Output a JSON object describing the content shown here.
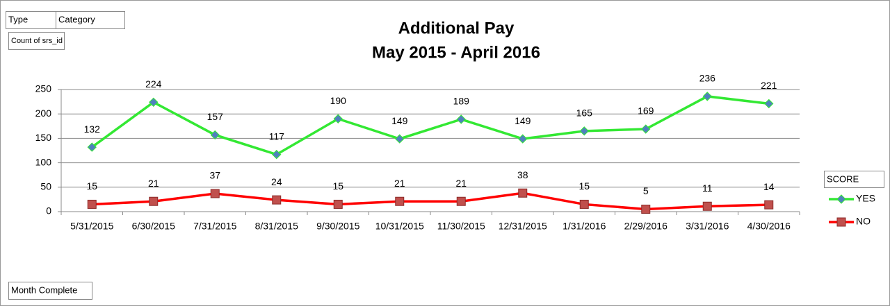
{
  "chart_data": {
    "type": "line",
    "title": [
      "Additional Pay",
      "May 2015 - April 2016"
    ],
    "filter_buttons": [
      "Type",
      "Category"
    ],
    "value_field": "Count of srs_id",
    "axis_field": "Month Complete",
    "legend_title": "SCORE",
    "legend": "right",
    "grid": true,
    "categories": [
      "5/31/2015",
      "6/30/2015",
      "7/31/2015",
      "8/31/2015",
      "9/30/2015",
      "10/31/2015",
      "11/30/2015",
      "12/31/2015",
      "1/31/2016",
      "2/29/2016",
      "3/31/2016",
      "4/30/2016"
    ],
    "series": [
      {
        "name": "YES",
        "color": "#33e833",
        "marker": "diamond",
        "marker_color": "#4f81bd",
        "values": [
          132,
          224,
          157,
          117,
          190,
          149,
          189,
          149,
          165,
          169,
          236,
          221
        ]
      },
      {
        "name": "NO",
        "color": "#ff0000",
        "marker": "square",
        "marker_color": "#c0504d",
        "values": [
          15,
          21,
          37,
          24,
          15,
          21,
          21,
          38,
          15,
          5,
          11,
          14
        ]
      }
    ],
    "ylim": [
      0,
      250
    ],
    "yticks": [
      0,
      50,
      100,
      150,
      200,
      250
    ]
  }
}
